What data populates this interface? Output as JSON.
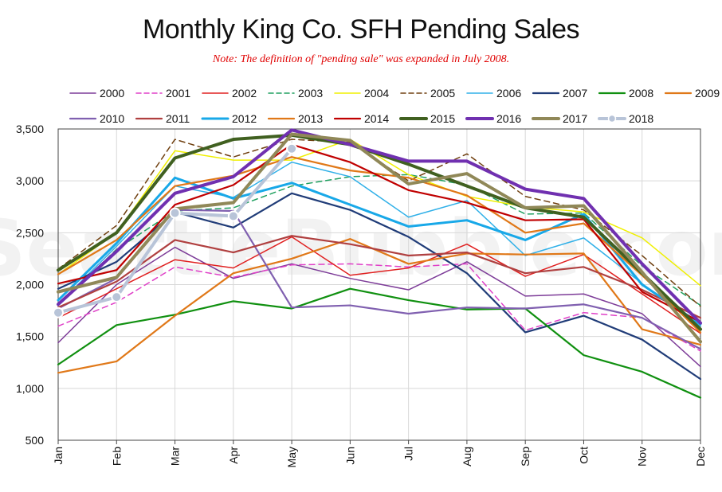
{
  "title": "Monthly King Co. SFH Pending Sales",
  "subtitle": "Note: The definition of \"pending sale\" was expanded in July 2008.",
  "watermark": "SeattleBubble.com",
  "chart_data": {
    "type": "line",
    "categories": [
      "Jan",
      "Feb",
      "Mar",
      "Apr",
      "May",
      "Jun",
      "Jul",
      "Aug",
      "Sep",
      "Oct",
      "Nov",
      "Dec"
    ],
    "yticks": [
      "500",
      "1,000",
      "1,500",
      "2,000",
      "2,500",
      "3,000",
      "3,500"
    ],
    "ylim": [
      500,
      3500
    ],
    "grid": true,
    "legend_position": "top",
    "series": [
      {
        "name": "2000",
        "color": "#7d3c98",
        "style": "solid",
        "width": 1.5,
        "values": [
          1440,
          2000,
          2360,
          2060,
          2200,
          2060,
          1950,
          2220,
          1890,
          1910,
          1720,
          1210
        ]
      },
      {
        "name": "2001",
        "color": "#e040c8",
        "style": "dashed",
        "width": 1.5,
        "values": [
          1600,
          1830,
          2170,
          2070,
          2190,
          2200,
          2170,
          2200,
          1560,
          1730,
          1680,
          1360
        ]
      },
      {
        "name": "2002",
        "color": "#e02020",
        "style": "solid",
        "width": 1.5,
        "values": [
          1680,
          1960,
          2240,
          2160,
          2460,
          2090,
          2160,
          2390,
          2080,
          2290,
          1910,
          1530
        ]
      },
      {
        "name": "2003",
        "color": "#20a060",
        "style": "dashed",
        "width": 1.5,
        "values": [
          1800,
          2340,
          2710,
          2740,
          2950,
          3040,
          3060,
          2960,
          2680,
          2690,
          2180,
          1800
        ]
      },
      {
        "name": "2004",
        "color": "#f0f000",
        "style": "solid",
        "width": 1.5,
        "values": [
          2100,
          2500,
          3290,
          3200,
          3200,
          3400,
          3060,
          2850,
          2750,
          2700,
          2450,
          1990
        ]
      },
      {
        "name": "2005",
        "color": "#704010",
        "style": "dashed",
        "width": 1.5,
        "values": [
          2150,
          2570,
          3400,
          3230,
          3400,
          3370,
          3000,
          3260,
          2850,
          2720,
          2280,
          1790
        ]
      },
      {
        "name": "2006",
        "color": "#30b0e8",
        "style": "solid",
        "width": 1.5,
        "values": [
          1810,
          2370,
          2950,
          2840,
          3180,
          3040,
          2650,
          2810,
          2280,
          2450,
          2010,
          1600
        ]
      },
      {
        "name": "2007",
        "color": "#203c78",
        "style": "solid",
        "width": 2.2,
        "values": [
          1960,
          2220,
          2700,
          2550,
          2880,
          2720,
          2460,
          2110,
          1540,
          1700,
          1470,
          1090
        ]
      },
      {
        "name": "2008",
        "color": "#109010",
        "style": "solid",
        "width": 2.2,
        "values": [
          1230,
          1610,
          1710,
          1840,
          1770,
          1960,
          1850,
          1760,
          1770,
          1320,
          1160,
          910
        ]
      },
      {
        "name": "2009",
        "color": "#e07818",
        "style": "solid",
        "width": 2.2,
        "values": [
          1150,
          1260,
          1700,
          2110,
          2250,
          2440,
          2200,
          2300,
          2290,
          2300,
          1570,
          1420
        ]
      },
      {
        "name": "2010",
        "color": "#8060b0",
        "style": "solid",
        "width": 2.2,
        "values": [
          1770,
          2060,
          2720,
          2710,
          1780,
          1800,
          1720,
          1780,
          1770,
          1810,
          1680,
          1380
        ]
      },
      {
        "name": "2011",
        "color": "#b04040",
        "style": "solid",
        "width": 2.2,
        "values": [
          1780,
          2030,
          2430,
          2310,
          2470,
          2390,
          2280,
          2310,
          2110,
          2170,
          1950,
          1680
        ]
      },
      {
        "name": "2012",
        "color": "#18a8e8",
        "style": "solid",
        "width": 3,
        "values": [
          1850,
          2400,
          3030,
          2830,
          2980,
          2770,
          2560,
          2620,
          2430,
          2680,
          2000,
          1620
        ]
      },
      {
        "name": "2013",
        "color": "#e07818",
        "style": "solid",
        "width": 2.2,
        "values": [
          2100,
          2430,
          2950,
          3050,
          3230,
          3100,
          3030,
          2860,
          2500,
          2590,
          2090,
          1540
        ]
      },
      {
        "name": "2014",
        "color": "#c00000",
        "style": "solid",
        "width": 2.2,
        "values": [
          2010,
          2140,
          2770,
          2960,
          3350,
          3180,
          2910,
          2790,
          2620,
          2630,
          1930,
          1640
        ]
      },
      {
        "name": "2015",
        "color": "#406020",
        "style": "solid",
        "width": 4,
        "values": [
          2140,
          2500,
          3220,
          3400,
          3440,
          3350,
          3160,
          2950,
          2740,
          2650,
          2110,
          1570
        ]
      },
      {
        "name": "2016",
        "color": "#7030b0",
        "style": "solid",
        "width": 4,
        "values": [
          1810,
          2320,
          2880,
          3040,
          3490,
          3350,
          3190,
          3190,
          2920,
          2830,
          2200,
          1630
        ]
      },
      {
        "name": "2017",
        "color": "#908858",
        "style": "solid",
        "width": 4,
        "values": [
          1930,
          2070,
          2730,
          2790,
          3450,
          3390,
          2970,
          3070,
          2740,
          2760,
          2120,
          1450
        ]
      },
      {
        "name": "2018",
        "color": "#b8c4d8",
        "style": "solid-markers",
        "width": 4,
        "values": [
          1730,
          1880,
          2690,
          2660,
          3310,
          null,
          null,
          null,
          null,
          null,
          null,
          null
        ]
      }
    ]
  }
}
